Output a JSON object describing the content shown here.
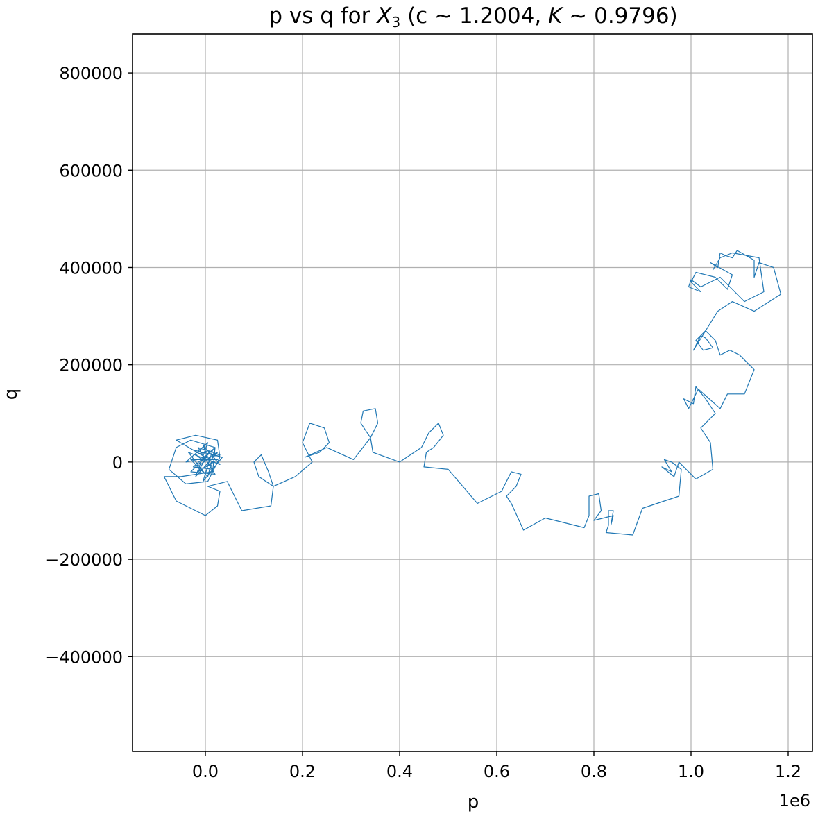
{
  "chart_data": {
    "type": "line",
    "title": {
      "prefix": "p vs q for ",
      "var": "X",
      "sub": "3",
      "mid": " (c ~ 1.2004, ",
      "k": "K",
      "suffix": "  ~ 0.9796)"
    },
    "xlabel": "p",
    "ylabel": "q",
    "x_offset_text": "1e6",
    "xlim": [
      -150000,
      1250000
    ],
    "ylim": [
      -595000,
      880000
    ],
    "x_ticks": [
      {
        "value": 0,
        "label": "0.0"
      },
      {
        "value": 200000,
        "label": "0.2"
      },
      {
        "value": 400000,
        "label": "0.4"
      },
      {
        "value": 600000,
        "label": "0.6"
      },
      {
        "value": 800000,
        "label": "0.8"
      },
      {
        "value": 1000000,
        "label": "1.0"
      },
      {
        "value": 1200000,
        "label": "1.2"
      }
    ],
    "y_ticks": [
      {
        "value": -400000,
        "label": "−400000"
      },
      {
        "value": -200000,
        "label": "−200000"
      },
      {
        "value": 0,
        "label": "0"
      },
      {
        "value": 200000,
        "label": "200000"
      },
      {
        "value": 400000,
        "label": "400000"
      },
      {
        "value": 600000,
        "label": "600000"
      },
      {
        "value": 800000,
        "label": "800000"
      }
    ],
    "grid": true,
    "series": [
      {
        "color": "#1f77b4",
        "points": [
          [
            0,
            0
          ],
          [
            -20000,
            15000
          ],
          [
            10000,
            25000
          ],
          [
            -15000,
            -20000
          ],
          [
            25000,
            5000
          ],
          [
            -30000,
            5000
          ],
          [
            5000,
            -30000
          ],
          [
            20000,
            30000
          ],
          [
            -25000,
            -10000
          ],
          [
            15000,
            -15000
          ],
          [
            -5000,
            35000
          ],
          [
            30000,
            -5000
          ],
          [
            -35000,
            20000
          ],
          [
            0,
            -25000
          ],
          [
            10000,
            10000
          ],
          [
            -10000,
            -5000
          ],
          [
            25000,
            20000
          ],
          [
            -20000,
            -30000
          ],
          [
            5000,
            40000
          ],
          [
            -40000,
            0
          ],
          [
            30000,
            15000
          ],
          [
            -15000,
            30000
          ],
          [
            20000,
            -25000
          ],
          [
            -30000,
            -20000
          ],
          [
            15000,
            25000
          ],
          [
            -5000,
            -40000
          ],
          [
            35000,
            10000
          ],
          [
            -25000,
            25000
          ],
          [
            0,
            10000
          ],
          [
            -60000,
            45000
          ],
          [
            -20000,
            55000
          ],
          [
            25000,
            45000
          ],
          [
            30000,
            10000
          ],
          [
            5000,
            -40000
          ],
          [
            -40000,
            -45000
          ],
          [
            -75000,
            -15000
          ],
          [
            -60000,
            30000
          ],
          [
            -30000,
            45000
          ],
          [
            20000,
            30000
          ],
          [
            15000,
            -20000
          ],
          [
            -50000,
            -30000
          ],
          [
            -85000,
            -30000
          ],
          [
            -60000,
            -80000
          ],
          [
            0,
            -110000
          ],
          [
            25000,
            -90000
          ],
          [
            30000,
            -60000
          ],
          [
            5000,
            -50000
          ],
          [
            45000,
            -40000
          ],
          [
            75000,
            -100000
          ],
          [
            135000,
            -90000
          ],
          [
            140000,
            -50000
          ],
          [
            110000,
            -30000
          ],
          [
            100000,
            0
          ],
          [
            115000,
            15000
          ],
          [
            130000,
            -20000
          ],
          [
            140000,
            -50000
          ],
          [
            185000,
            -30000
          ],
          [
            220000,
            0
          ],
          [
            200000,
            40000
          ],
          [
            215000,
            80000
          ],
          [
            245000,
            70000
          ],
          [
            255000,
            40000
          ],
          [
            235000,
            20000
          ],
          [
            205000,
            10000
          ],
          [
            250000,
            30000
          ],
          [
            305000,
            5000
          ],
          [
            340000,
            50000
          ],
          [
            320000,
            80000
          ],
          [
            325000,
            105000
          ],
          [
            350000,
            110000
          ],
          [
            355000,
            80000
          ],
          [
            340000,
            50000
          ],
          [
            345000,
            20000
          ],
          [
            400000,
            0
          ],
          [
            430000,
            20000
          ],
          [
            445000,
            30000
          ],
          [
            460000,
            60000
          ],
          [
            480000,
            80000
          ],
          [
            490000,
            55000
          ],
          [
            470000,
            30000
          ],
          [
            455000,
            20000
          ],
          [
            450000,
            -10000
          ],
          [
            500000,
            -15000
          ],
          [
            560000,
            -85000
          ],
          [
            610000,
            -60000
          ],
          [
            620000,
            -40000
          ],
          [
            630000,
            -20000
          ],
          [
            650000,
            -25000
          ],
          [
            640000,
            -50000
          ],
          [
            620000,
            -70000
          ],
          [
            630000,
            -85000
          ],
          [
            655000,
            -140000
          ],
          [
            700000,
            -115000
          ],
          [
            780000,
            -135000
          ],
          [
            790000,
            -110000
          ],
          [
            790000,
            -70000
          ],
          [
            810000,
            -65000
          ],
          [
            815000,
            -100000
          ],
          [
            800000,
            -120000
          ],
          [
            840000,
            -110000
          ],
          [
            835000,
            -130000
          ],
          [
            840000,
            -100000
          ],
          [
            830000,
            -100000
          ],
          [
            830000,
            -130000
          ],
          [
            825000,
            -145000
          ],
          [
            880000,
            -150000
          ],
          [
            900000,
            -95000
          ],
          [
            975000,
            -70000
          ],
          [
            980000,
            -15000
          ],
          [
            960000,
            0
          ],
          [
            945000,
            5000
          ],
          [
            960000,
            -20000
          ],
          [
            940000,
            -10000
          ],
          [
            965000,
            -30000
          ],
          [
            975000,
            0
          ],
          [
            1010000,
            -35000
          ],
          [
            1045000,
            -15000
          ],
          [
            1040000,
            40000
          ],
          [
            1020000,
            70000
          ],
          [
            1050000,
            100000
          ],
          [
            1030000,
            130000
          ],
          [
            1010000,
            155000
          ],
          [
            1005000,
            120000
          ],
          [
            985000,
            130000
          ],
          [
            995000,
            110000
          ],
          [
            1015000,
            150000
          ],
          [
            1060000,
            110000
          ],
          [
            1075000,
            140000
          ],
          [
            1110000,
            140000
          ],
          [
            1130000,
            190000
          ],
          [
            1100000,
            220000
          ],
          [
            1080000,
            230000
          ],
          [
            1060000,
            220000
          ],
          [
            1050000,
            250000
          ],
          [
            1030000,
            270000
          ],
          [
            1010000,
            250000
          ],
          [
            1025000,
            230000
          ],
          [
            1045000,
            235000
          ],
          [
            1030000,
            255000
          ],
          [
            1020000,
            260000
          ],
          [
            1005000,
            230000
          ],
          [
            1055000,
            310000
          ],
          [
            1085000,
            330000
          ],
          [
            1130000,
            310000
          ],
          [
            1185000,
            345000
          ],
          [
            1170000,
            400000
          ],
          [
            1140000,
            410000
          ],
          [
            1130000,
            380000
          ],
          [
            1130000,
            415000
          ],
          [
            1095000,
            435000
          ],
          [
            1085000,
            420000
          ],
          [
            1070000,
            425000
          ],
          [
            1060000,
            430000
          ],
          [
            1055000,
            400000
          ],
          [
            1040000,
            410000
          ],
          [
            1085000,
            385000
          ],
          [
            1075000,
            355000
          ],
          [
            1050000,
            380000
          ],
          [
            1010000,
            390000
          ],
          [
            1000000,
            370000
          ],
          [
            1020000,
            350000
          ],
          [
            995000,
            360000
          ],
          [
            1000000,
            375000
          ],
          [
            1020000,
            360000
          ],
          [
            1060000,
            380000
          ],
          [
            1090000,
            350000
          ],
          [
            1110000,
            330000
          ],
          [
            1150000,
            350000
          ],
          [
            1140000,
            420000
          ],
          [
            1085000,
            430000
          ],
          [
            1060000,
            420000
          ],
          [
            1045000,
            395000
          ]
        ]
      }
    ]
  }
}
